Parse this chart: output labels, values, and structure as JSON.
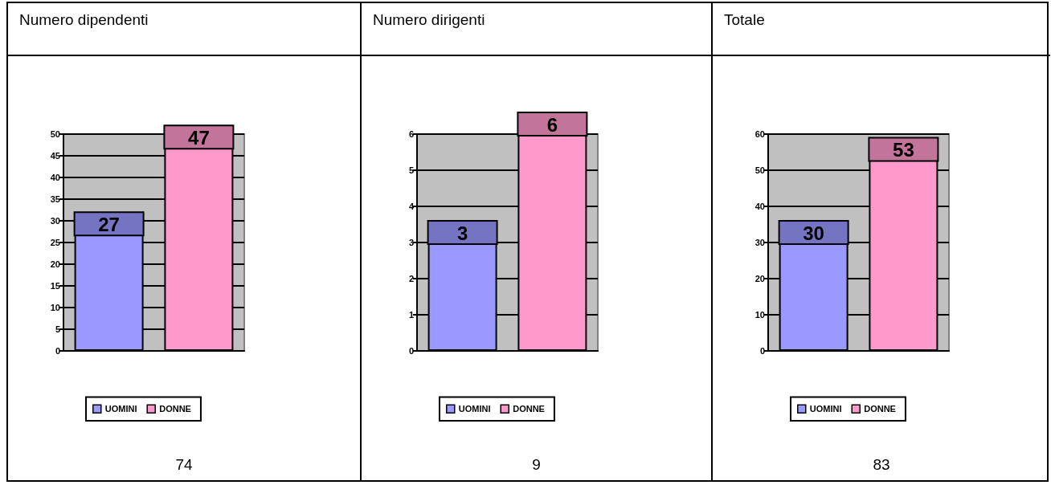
{
  "chart_data": [
    {
      "type": "bar",
      "title": "Numero dipendenti",
      "categories": [
        null
      ],
      "series": [
        {
          "name": "UOMINI",
          "color": "#9999ff",
          "values": [
            27
          ]
        },
        {
          "name": "DONNE",
          "color": "#ff99cc",
          "values": [
            47
          ]
        }
      ],
      "ylim": [
        0,
        50
      ],
      "yticks": [
        0,
        5,
        10,
        15,
        20,
        25,
        30,
        35,
        40,
        45,
        50
      ],
      "grid": "y",
      "legend": "bottom",
      "data_labels": true,
      "annotations": [
        "74"
      ]
    },
    {
      "type": "bar",
      "title": "Numero dirigenti",
      "categories": [
        null
      ],
      "series": [
        {
          "name": "UOMINI",
          "color": "#9999ff",
          "values": [
            3
          ]
        },
        {
          "name": "DONNE",
          "color": "#ff99cc",
          "values": [
            6
          ]
        }
      ],
      "ylim": [
        0,
        6
      ],
      "yticks": [
        0,
        1,
        2,
        3,
        4,
        5,
        6
      ],
      "grid": "y",
      "legend": "bottom",
      "data_labels": true,
      "annotations": [
        "9"
      ]
    },
    {
      "type": "bar",
      "title": "Totale",
      "categories": [
        null
      ],
      "series": [
        {
          "name": "UOMINI",
          "color": "#9999ff",
          "values": [
            30
          ]
        },
        {
          "name": "DONNE",
          "color": "#ff99cc",
          "values": [
            53
          ]
        }
      ],
      "ylim": [
        0,
        60
      ],
      "yticks": [
        0,
        10,
        20,
        30,
        40,
        50,
        60
      ],
      "grid": "y",
      "legend": "bottom",
      "data_labels": true,
      "annotations": [
        "83"
      ]
    }
  ]
}
